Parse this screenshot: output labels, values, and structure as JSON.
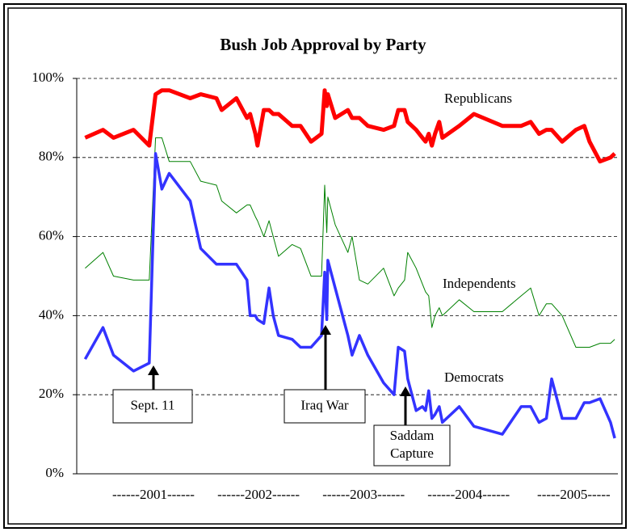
{
  "chart_data": {
    "type": "line",
    "title": "Bush Job Approval by Party",
    "x": [
      2000.85,
      2001.02,
      2001.12,
      2001.31,
      2001.46,
      2001.52,
      2001.58,
      2001.65,
      2001.85,
      2001.95,
      2002.1,
      2002.15,
      2002.29,
      2002.39,
      2002.42,
      2002.47,
      2002.49,
      2002.55,
      2002.6,
      2002.64,
      2002.69,
      2002.82,
      2002.9,
      2003.0,
      2003.1,
      2003.13,
      2003.15,
      2003.16,
      2003.23,
      2003.35,
      2003.39,
      2003.46,
      2003.54,
      2003.69,
      2003.79,
      2003.83,
      2003.89,
      2003.92,
      2004.0,
      2004.06,
      2004.09,
      2004.12,
      2004.15,
      2004.18,
      2004.22,
      2004.25,
      2004.41,
      2004.55,
      2004.82,
      2005.0,
      2005.09,
      2005.17,
      2005.24,
      2005.29,
      2005.39,
      2005.52,
      2005.6,
      2005.65,
      2005.75,
      2005.85,
      2005.89
    ],
    "series": [
      {
        "name": "Republicans",
        "color": "#ff0000",
        "width": 5,
        "values": [
          85,
          87,
          85,
          87,
          83,
          96,
          97,
          97,
          95,
          96,
          95,
          92,
          95,
          90,
          91,
          86,
          83,
          92,
          92,
          91,
          91,
          88,
          88,
          84,
          86,
          97,
          93,
          96,
          90,
          92,
          90,
          90,
          88,
          87,
          88,
          92,
          92,
          89,
          87,
          85,
          84,
          86,
          83,
          86,
          89,
          85,
          88,
          91,
          88,
          88,
          89,
          86,
          87,
          87,
          84,
          87,
          88,
          84,
          79,
          80,
          81
        ]
      },
      {
        "name": "Independents",
        "color": "#008000",
        "width": 1,
        "values": [
          52,
          56,
          50,
          49,
          49,
          85,
          85,
          79,
          79,
          74,
          73,
          69,
          66,
          68,
          68,
          65,
          64,
          60,
          64,
          60,
          55,
          58,
          57,
          50,
          50,
          73,
          61,
          70,
          63,
          56,
          60,
          49,
          48,
          52,
          45,
          47,
          49,
          56,
          52,
          48,
          46,
          45,
          37,
          40,
          42,
          40,
          44,
          41,
          41,
          45,
          47,
          40,
          43,
          43,
          40,
          32,
          32,
          32,
          33,
          33,
          34
        ]
      },
      {
        "name": "Democrats",
        "color": "#3333ff",
        "width": 3.5,
        "values": [
          29,
          37,
          30,
          26,
          28,
          81,
          72,
          76,
          69,
          57,
          53,
          53,
          53,
          49,
          40,
          40,
          39,
          38,
          47,
          40,
          35,
          34,
          32,
          32,
          35,
          51,
          39,
          54,
          47,
          35,
          30,
          35,
          30,
          23,
          20,
          32,
          31,
          24,
          16,
          17,
          16,
          21,
          14,
          15,
          17,
          13,
          17,
          12,
          10,
          17,
          17,
          13,
          14,
          24,
          14,
          14,
          18,
          18,
          19,
          13,
          9
        ]
      }
    ],
    "xlim": [
      2000.77,
      2005.92
    ],
    "xticks": [
      {
        "value": 2001.5,
        "label": "------2001------"
      },
      {
        "value": 2002.5,
        "label": "------2002------"
      },
      {
        "value": 2003.5,
        "label": "------2003------"
      },
      {
        "value": 2004.5,
        "label": "------2004------"
      },
      {
        "value": 2005.5,
        "label": "-----2005-----"
      }
    ],
    "ylim": [
      0,
      100
    ],
    "yticks": [
      {
        "value": 0,
        "label": "0%"
      },
      {
        "value": 20,
        "label": "20%"
      },
      {
        "value": 40,
        "label": "40%"
      },
      {
        "value": 60,
        "label": "60%"
      },
      {
        "value": 80,
        "label": "80%"
      },
      {
        "value": 100,
        "label": "100%"
      }
    ],
    "grid": true,
    "annotations": [
      {
        "lines": [
          "Sept. 11"
        ]
      },
      {
        "lines": [
          "Iraq War"
        ]
      },
      {
        "lines": [
          "Saddam",
          "Capture"
        ]
      }
    ]
  }
}
